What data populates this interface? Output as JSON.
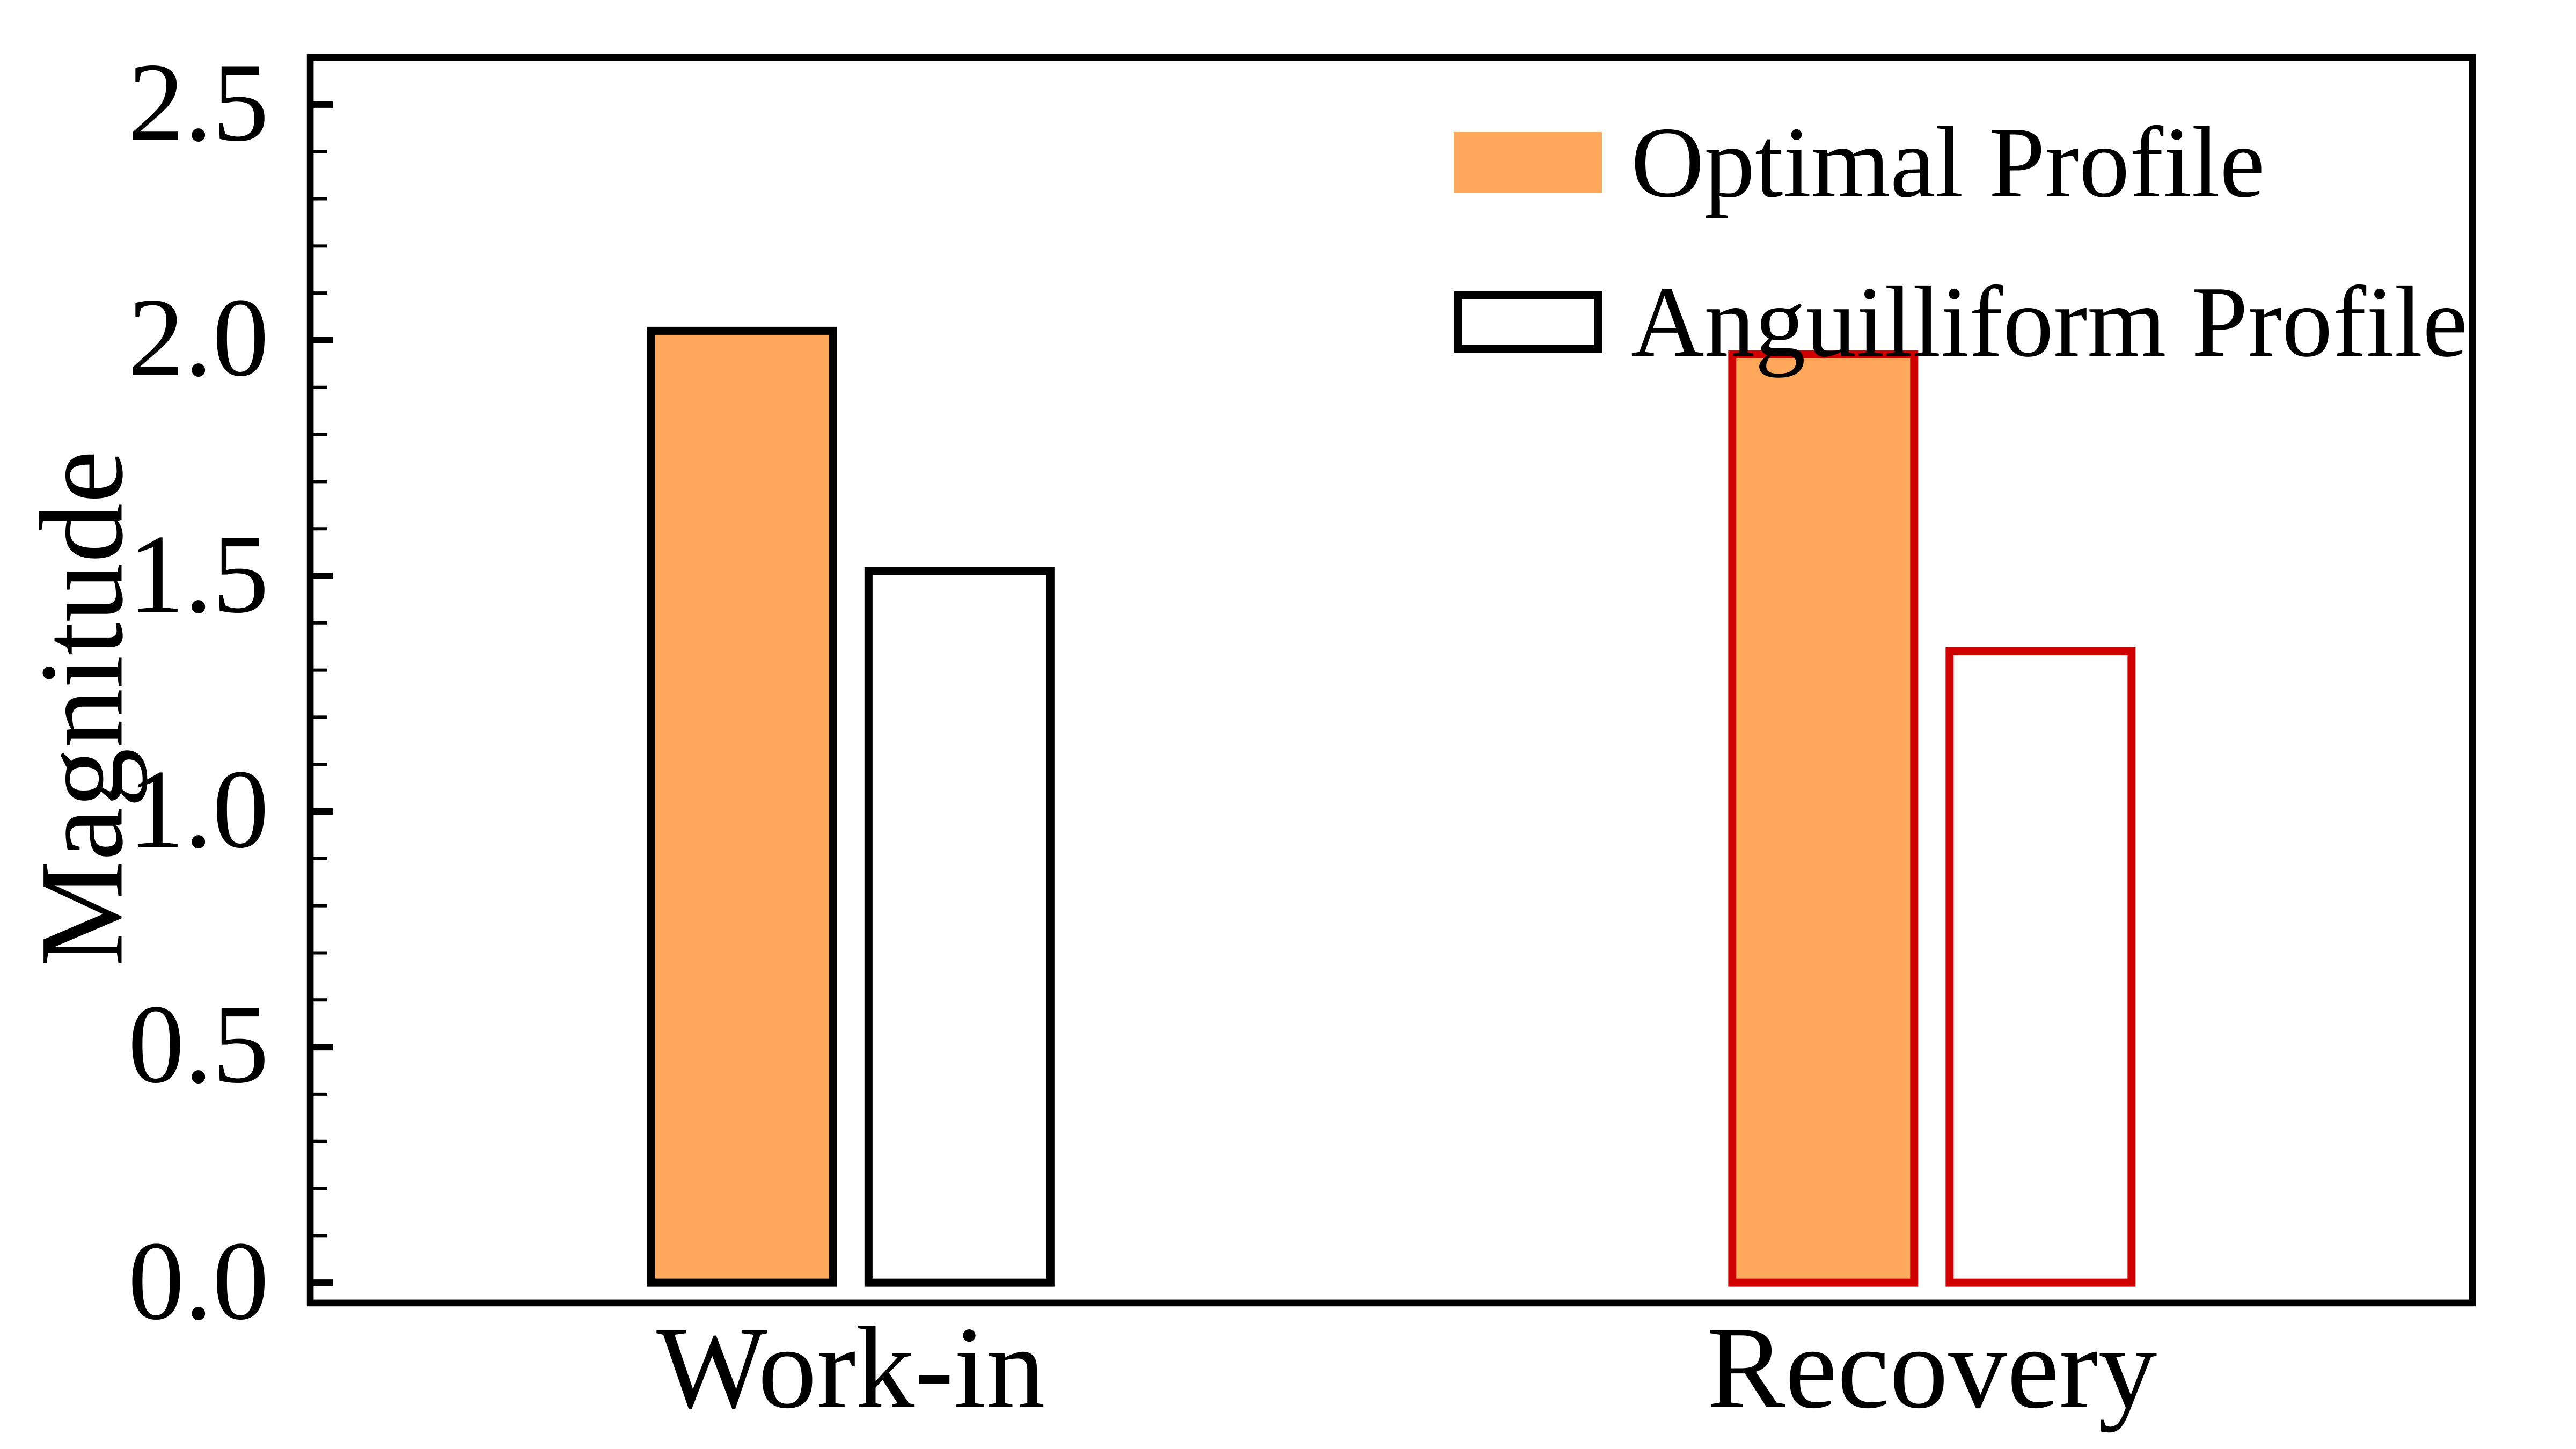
{
  "chart_data": {
    "type": "bar",
    "title": "",
    "ylabel": "Magnitude",
    "xlabel": "",
    "categories": [
      "Work-in",
      "Recovery"
    ],
    "series": [
      {
        "name": "Optimal Profile",
        "values": [
          2.02,
          1.97
        ],
        "fill_color": "#FDA85A"
      },
      {
        "name": "Anguilliform Profile",
        "values": [
          1.51,
          1.34
        ],
        "fill_color": "#FFFFFF"
      }
    ],
    "category_edge_colors": [
      "#000000",
      "#D00000"
    ],
    "y_axis": {
      "min": -0.043,
      "max": 2.6,
      "major_tick_step": 0.5,
      "minor_tick_step": 0.1,
      "tick_labels": [
        "0.0",
        "0.5",
        "1.0",
        "1.5",
        "2.0",
        "2.5"
      ],
      "ticks_direction": "in"
    },
    "x_axis": {
      "ticks_visible": false
    },
    "legend": {
      "position": "upper-right",
      "entries": [
        {
          "label": "Optimal Profile",
          "swatch_fill": "#FDA85A",
          "swatch_edge": "none"
        },
        {
          "label": "Anguilliform Profile",
          "swatch_fill": "#FFFFFF",
          "swatch_edge": "#000000"
        }
      ]
    },
    "grid": false,
    "frame_color": "#000000",
    "background_color": "#FFFFFF"
  }
}
